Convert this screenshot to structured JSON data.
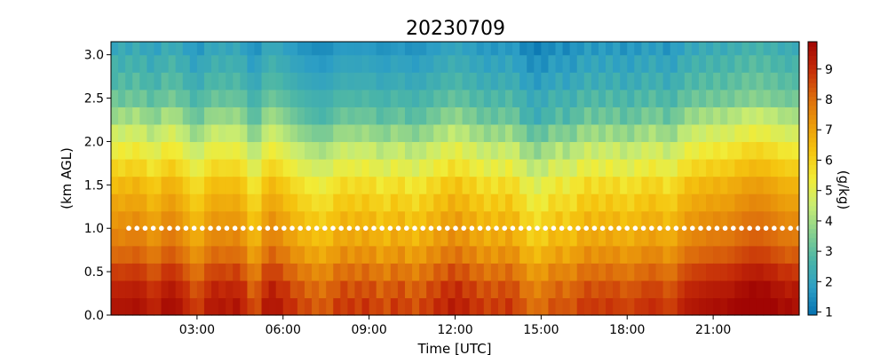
{
  "chart_data": {
    "type": "heatmap",
    "title": "20230709",
    "xlabel": "Time [UTC]",
    "ylabel": "(km AGL)",
    "colorbar_label": "(g/kg)",
    "xlim_hours": [
      0.0,
      24.0
    ],
    "ylim_km": [
      0.0,
      3.15
    ],
    "x_ticks": [
      {
        "hour": 3,
        "label": "03:00"
      },
      {
        "hour": 6,
        "label": "06:00"
      },
      {
        "hour": 9,
        "label": "09:00"
      },
      {
        "hour": 12,
        "label": "12:00"
      },
      {
        "hour": 15,
        "label": "15:00"
      },
      {
        "hour": 18,
        "label": "18:00"
      },
      {
        "hour": 21,
        "label": "21:00"
      }
    ],
    "y_ticks": [
      {
        "value": 0.0,
        "label": "0.0"
      },
      {
        "value": 0.5,
        "label": "0.5"
      },
      {
        "value": 1.0,
        "label": "1.0"
      },
      {
        "value": 1.5,
        "label": "1.5"
      },
      {
        "value": 2.0,
        "label": "2.0"
      },
      {
        "value": 2.5,
        "label": "2.5"
      },
      {
        "value": 3.0,
        "label": "3.0"
      }
    ],
    "colorbar": {
      "vmin": 0.9,
      "vmax": 9.9,
      "ticks": [
        1,
        2,
        3,
        4,
        5,
        6,
        7,
        8,
        9
      ],
      "colormap": [
        "#0571b0",
        "#2c9ec5",
        "#4ab5a8",
        "#86d08f",
        "#c7ec73",
        "#f2ec36",
        "#f5c40f",
        "#eb9a0b",
        "#dc6a0c",
        "#c52b08",
        "#a10503"
      ]
    },
    "time_step_hours": 0.25,
    "heights_km": [
      0.0,
      0.2,
      0.4,
      0.6,
      0.8,
      1.0,
      1.2,
      1.4,
      1.6,
      1.8,
      2.0,
      2.2,
      2.4,
      2.6,
      2.8,
      3.0,
      3.15
    ],
    "base_profile_gkg": [
      9.2,
      8.9,
      8.4,
      7.8,
      7.3,
      7.0,
      6.6,
      6.2,
      5.6,
      5.0,
      4.3,
      3.6,
      3.0,
      2.6,
      2.3,
      2.0,
      1.9
    ],
    "temporal_anomaly_gkg": [
      [
        0.0,
        0.2
      ],
      [
        0.5,
        0.2
      ],
      [
        1.0,
        0.3
      ],
      [
        1.5,
        -0.1
      ],
      [
        2.0,
        0.4
      ],
      [
        2.5,
        0.1
      ],
      [
        3.0,
        -0.4
      ],
      [
        3.5,
        0.2
      ],
      [
        4.0,
        0.1
      ],
      [
        4.5,
        0.2
      ],
      [
        5.0,
        -0.6
      ],
      [
        5.5,
        0.3
      ],
      [
        6.0,
        0.0
      ],
      [
        6.5,
        -0.3
      ],
      [
        7.0,
        -0.5
      ],
      [
        7.5,
        -0.6
      ],
      [
        8.0,
        -0.2
      ],
      [
        8.5,
        -0.3
      ],
      [
        9.0,
        -0.2
      ],
      [
        9.5,
        -0.5
      ],
      [
        10.0,
        -0.2
      ],
      [
        10.5,
        -0.5
      ],
      [
        11.0,
        -0.3
      ],
      [
        11.5,
        -0.1
      ],
      [
        12.0,
        0.1
      ],
      [
        12.5,
        -0.1
      ],
      [
        13.0,
        -0.3
      ],
      [
        13.5,
        -0.3
      ],
      [
        14.0,
        -0.2
      ],
      [
        14.5,
        -0.7
      ],
      [
        15.0,
        -0.8
      ],
      [
        15.5,
        -0.4
      ],
      [
        16.0,
        -0.6
      ],
      [
        16.5,
        -0.2
      ],
      [
        17.0,
        -0.3
      ],
      [
        17.5,
        -0.2
      ],
      [
        18.0,
        -0.4
      ],
      [
        18.5,
        -0.2
      ],
      [
        19.0,
        -0.1
      ],
      [
        19.5,
        -0.4
      ],
      [
        20.0,
        0.1
      ],
      [
        20.5,
        0.2
      ],
      [
        21.0,
        0.3
      ],
      [
        21.5,
        0.3
      ],
      [
        22.0,
        0.5
      ],
      [
        22.5,
        0.6
      ],
      [
        23.0,
        0.5
      ],
      [
        23.5,
        0.3
      ],
      [
        24.0,
        0.3
      ]
    ],
    "reference_line": {
      "height_km": 1.0,
      "style": "white dotted"
    }
  }
}
